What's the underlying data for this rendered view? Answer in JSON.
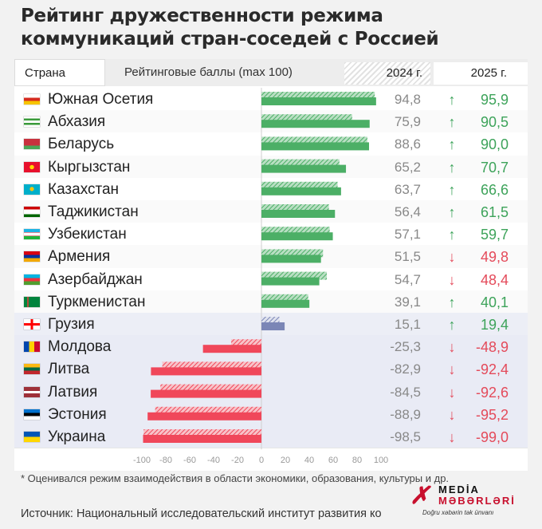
{
  "title_lines": [
    "Рейтинг дружественности режима",
    "коммуникаций стран-соседей с Россией"
  ],
  "header": {
    "country": "Страна",
    "scores": "Рейтинговые баллы (max 100)",
    "y2024": "2024 г.",
    "y2025": "2025 г."
  },
  "colors": {
    "positive_bar": "#4caf66",
    "negative_bar": "#f0475a",
    "up_arrow": "#3da35a",
    "down_arrow": "#e44a5a",
    "highlight_band": "#e9ebf5"
  },
  "footnote": "* Оценивался режим взаимодействия в области экономики, образования, культуры и др.",
  "source": "Источник: Национальный исследовательский институт развития ко",
  "logo": {
    "line1": "MEDİA",
    "line2": "MƏBƏRLƏRİ",
    "tagline": "Doğru xəbərin tək ünvanı"
  },
  "chart_data": {
    "type": "bar",
    "title": "Рейтинг дружественности режима коммуникаций стран-соседей с Россией",
    "xlim": [
      -100,
      100
    ],
    "x_ticks": [
      "-100",
      "-80",
      "-60",
      "-40",
      "-20",
      "0",
      "20",
      "40",
      "60",
      "80",
      "100"
    ],
    "categories": [
      "Южная Осетия",
      "Абхазия",
      "Беларусь",
      "Кыргызстан",
      "Казахстан",
      "Таджикистан",
      "Узбекистан",
      "Армения",
      "Азербайджан",
      "Туркменистан",
      "Грузия",
      "Молдова",
      "Литва",
      "Латвия",
      "Эстония",
      "Украина"
    ],
    "flags": [
      "flag-south-ossetia-icon",
      "flag-abkhazia-icon",
      "flag-belarus-icon",
      "flag-kyrgyzstan-icon",
      "flag-kazakhstan-icon",
      "flag-tajikistan-icon",
      "flag-uzbekistan-icon",
      "flag-armenia-icon",
      "flag-azerbaijan-icon",
      "flag-turkmenistan-icon",
      "flag-georgia-icon",
      "flag-moldova-icon",
      "flag-lithuania-icon",
      "flag-latvia-icon",
      "flag-estonia-icon",
      "flag-ukraine-icon"
    ],
    "series": [
      {
        "name": "2024 г.",
        "values": [
          94.8,
          75.9,
          88.6,
          65.2,
          63.7,
          56.4,
          57.1,
          51.5,
          54.7,
          39.1,
          15.1,
          -25.3,
          -82.9,
          -84.5,
          -88.9,
          -98.5
        ],
        "labels": [
          "94,8",
          "75,9",
          "88,6",
          "65,2",
          "63,7",
          "56,4",
          "57,1",
          "51,5",
          "54,7",
          "39,1",
          "15,1",
          "-25,3",
          "-82,9",
          "-84,5",
          "-88,9",
          "-98,5"
        ]
      },
      {
        "name": "2025 г.",
        "values": [
          95.9,
          90.5,
          90.0,
          70.7,
          66.6,
          61.5,
          59.7,
          49.8,
          48.4,
          40.1,
          19.4,
          -48.9,
          -92.4,
          -92.6,
          -95.2,
          -99.0
        ],
        "labels": [
          "95,9",
          "90,5",
          "90,0",
          "70,7",
          "66,6",
          "61,5",
          "59,7",
          "49,8",
          "48,4",
          "40,1",
          "19,4",
          "-48,9",
          "-92,4",
          "-92,6",
          "-95,2",
          "-99,0"
        ]
      }
    ],
    "trend": [
      "up",
      "up",
      "up",
      "up",
      "up",
      "up",
      "up",
      "down",
      "down",
      "up",
      "up",
      "down",
      "down",
      "down",
      "down",
      "down"
    ]
  }
}
